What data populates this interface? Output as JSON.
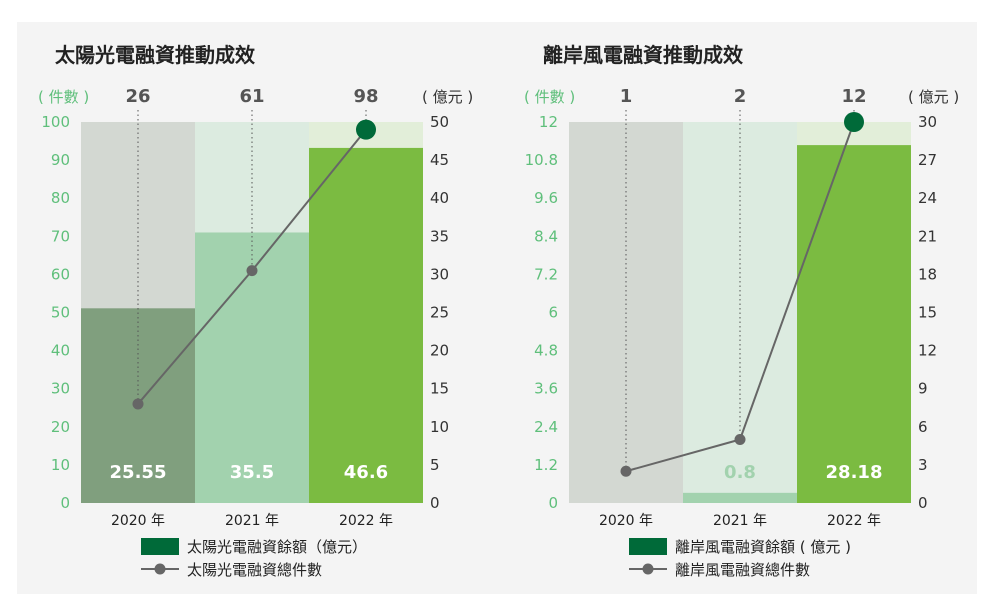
{
  "charts": [
    {
      "title": "太陽光電融資推動成效",
      "left_unit": "( 件數 )",
      "right_unit": "( 億元 )",
      "count_labels": [
        "26",
        "61",
        "98"
      ],
      "bar_labels": [
        "25.55",
        "35.5",
        "46.6"
      ],
      "left_ticks": [
        "0",
        "10",
        "20",
        "30",
        "40",
        "50",
        "60",
        "70",
        "80",
        "90",
        "100"
      ],
      "right_ticks": [
        "0",
        "5",
        "10",
        "15",
        "20",
        "25",
        "30",
        "35",
        "40",
        "45",
        "50"
      ],
      "x_labels": [
        "2020 年",
        "2021 年",
        "2022 年"
      ],
      "legend_bar": "太陽光電融資餘額（億元）",
      "legend_line": "太陽光電融資總件數"
    },
    {
      "title": "離岸風電融資推動成效",
      "left_unit": "( 件數 )",
      "right_unit": "( 億元 )",
      "count_labels": [
        "1",
        "2",
        "12"
      ],
      "bar_labels": [
        "",
        "0.8",
        "28.18"
      ],
      "left_ticks": [
        "0",
        "1.2",
        "2.4",
        "3.6",
        "4.8",
        "6",
        "7.2",
        "8.4",
        "9.6",
        "10.8",
        "12"
      ],
      "right_ticks": [
        "0",
        "3",
        "6",
        "9",
        "12",
        "15",
        "18",
        "21",
        "24",
        "27",
        "30"
      ],
      "x_labels": [
        "2020 年",
        "2021 年",
        "2022 年"
      ],
      "legend_bar": "離岸風電融資餘額 ( 億元 )",
      "legend_line": "離岸風電融資總件數"
    }
  ],
  "chart_data": [
    {
      "type": "bar",
      "title": "太陽光電融資推動成效",
      "categories": [
        "2020 年",
        "2021 年",
        "2022 年"
      ],
      "series": [
        {
          "name": "太陽光電融資餘額（億元）",
          "type": "bar",
          "axis": "right",
          "values": [
            25.55,
            35.5,
            46.6
          ]
        },
        {
          "name": "太陽光電融資總件數",
          "type": "line",
          "axis": "left",
          "values": [
            26,
            61,
            98
          ]
        }
      ],
      "y_left_range": [
        0,
        100
      ],
      "y_right_range": [
        0,
        50
      ],
      "colors": {
        "bar": [
          "#809f7e",
          "#a2d2ae",
          "#7bbb41"
        ],
        "bar_bg": [
          "#d3d8d2",
          "#dcebe0",
          "#e2eed9"
        ],
        "line": "#666666",
        "last_point": "#006a39",
        "legend_bar": "#006a39",
        "axis_left": "#5fbf7b"
      },
      "legend_position": "bottom",
      "grid": false
    },
    {
      "type": "bar",
      "title": "離岸風電融資推動成效",
      "categories": [
        "2020 年",
        "2021 年",
        "2022 年"
      ],
      "series": [
        {
          "name": "離岸風電融資餘額 ( 億元 )",
          "type": "bar",
          "axis": "right",
          "values": [
            0,
            0.8,
            28.18
          ]
        },
        {
          "name": "離岸風電融資總件數",
          "type": "line",
          "axis": "left",
          "values": [
            1,
            2,
            12
          ]
        }
      ],
      "y_left_range": [
        0,
        12
      ],
      "y_right_range": [
        0,
        30
      ],
      "colors": {
        "bar": [
          "#d3d8d2",
          "#a2d2ae",
          "#7bbb41"
        ],
        "bar_bg": [
          "#d3d8d2",
          "#dcebe0",
          "#e2eed9"
        ],
        "line": "#666666",
        "last_point": "#006a39",
        "legend_bar": "#006a39",
        "axis_left": "#5fbf7b"
      },
      "legend_position": "bottom",
      "grid": false
    }
  ]
}
